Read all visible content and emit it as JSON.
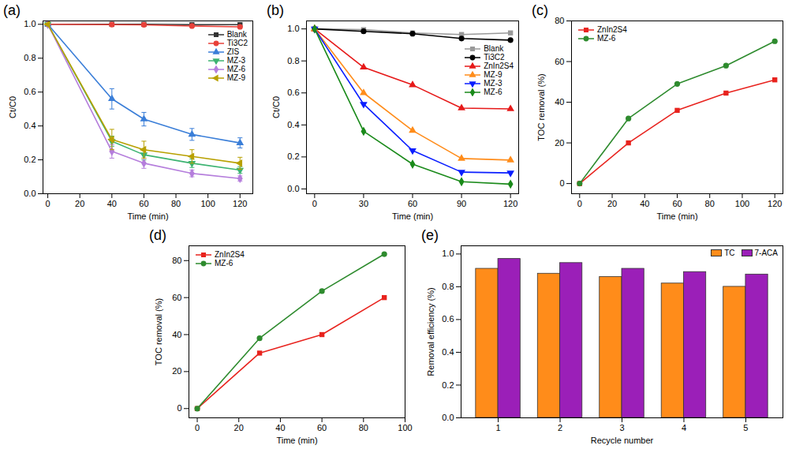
{
  "chart_data": [
    {
      "type": "line",
      "title": "(a)",
      "x_label": "Time (min)",
      "y_label": "Ct/C0",
      "x": [
        0,
        40,
        60,
        90,
        120
      ],
      "xlim": [
        -3,
        128
      ],
      "xticks": [
        0,
        20,
        40,
        60,
        80,
        100,
        120
      ],
      "ylim": [
        0,
        1.02
      ],
      "yticks": [
        {
          "value": 0,
          "label": "0.0"
        },
        0.2,
        0.4,
        0.6,
        0.8,
        {
          "value": 1,
          "label": "1.0"
        }
      ],
      "legend": "upper right",
      "series": [
        {
          "name": "Blank",
          "color": "#333333",
          "marker": "square",
          "values": [
            1,
            1,
            1,
            0.998,
            0.998
          ]
        },
        {
          "name": "Ti3C2",
          "color": "#e8413a",
          "marker": "circle",
          "values": [
            1,
            0.998,
            0.997,
            0.99,
            0.985
          ]
        },
        {
          "name": "ZIS",
          "color": "#3a7ed8",
          "marker": "triangle",
          "values": [
            1,
            0.56,
            0.44,
            0.35,
            0.3
          ],
          "errors": [
            0,
            0.06,
            0.04,
            0.035,
            0.03
          ]
        },
        {
          "name": "MZ-3",
          "color": "#3cb371",
          "marker": "triangle-down",
          "values": [
            1,
            0.31,
            0.23,
            0.18,
            0.14
          ],
          "errors": [
            0,
            0.03,
            0.03,
            0.025,
            0.02
          ]
        },
        {
          "name": "MZ-6",
          "color": "#b57edc",
          "marker": "diamond",
          "values": [
            1,
            0.25,
            0.18,
            0.12,
            0.09
          ],
          "errors": [
            0,
            0.04,
            0.03,
            0.02,
            0.015
          ]
        },
        {
          "name": "MZ-9",
          "color": "#b8a000",
          "marker": "triangle-left",
          "values": [
            1,
            0.32,
            0.26,
            0.22,
            0.18
          ],
          "errors": [
            0,
            0.06,
            0.05,
            0.04,
            0.035
          ]
        }
      ]
    },
    {
      "type": "line",
      "title": "(b)",
      "x_label": "Time (min)",
      "y_label": "Ct/C0",
      "x": [
        0,
        30,
        60,
        90,
        120
      ],
      "xlim": [
        -5,
        125
      ],
      "xticks": [
        0,
        30,
        60,
        90,
        120
      ],
      "ylim": [
        -0.03,
        1.05
      ],
      "yticks": [
        {
          "value": 0,
          "label": "0.0"
        },
        0.2,
        0.4,
        0.6,
        0.8,
        {
          "value": 1,
          "label": "1.0"
        }
      ],
      "legend": "upper right",
      "series": [
        {
          "name": "Blank",
          "color": "#999999",
          "marker": "square",
          "values": [
            1,
            0.995,
            0.975,
            0.965,
            0.975
          ]
        },
        {
          "name": "Ti3C2",
          "color": "#000000",
          "marker": "circle",
          "values": [
            1,
            0.985,
            0.97,
            0.94,
            0.93
          ]
        },
        {
          "name": "ZnIn2S4",
          "color": "#e61919",
          "marker": "triangle",
          "values": [
            1,
            0.76,
            0.65,
            0.505,
            0.5
          ]
        },
        {
          "name": "MZ-9",
          "color": "#ff8c1a",
          "marker": "triangle",
          "values": [
            1,
            0.6,
            0.365,
            0.19,
            0.18
          ]
        },
        {
          "name": "MZ-3",
          "color": "#0a1eff",
          "marker": "triangle-down",
          "values": [
            1,
            0.53,
            0.24,
            0.105,
            0.1
          ]
        },
        {
          "name": "MZ-6",
          "color": "#1a8a1a",
          "marker": "diamond",
          "values": [
            1,
            0.36,
            0.155,
            0.045,
            0.03
          ]
        }
      ]
    },
    {
      "type": "line",
      "title": "(c)",
      "x_label": "Time (min)",
      "y_label": "TOC removal (%)",
      "x": [
        0,
        30,
        60,
        90,
        120
      ],
      "xlim": [
        -5,
        125
      ],
      "xticks": [
        0,
        20,
        40,
        60,
        80,
        100,
        120
      ],
      "ylim": [
        -5,
        80
      ],
      "yticks": [
        0,
        20,
        40,
        60,
        80
      ],
      "legend": "upper left",
      "series": [
        {
          "name": "ZnIn2S4",
          "color": "#e8231e",
          "marker": "square",
          "values": [
            0,
            20,
            36,
            44.5,
            51
          ]
        },
        {
          "name": "MZ-6",
          "color": "#2e8b2e",
          "marker": "circle",
          "values": [
            0,
            32,
            49,
            58,
            70
          ]
        }
      ]
    },
    {
      "type": "line",
      "title": "(d)",
      "x_label": "Time (min)",
      "y_label": "TOC removal (%)",
      "x": [
        0,
        30,
        60,
        90
      ],
      "xlim": [
        -4,
        100
      ],
      "xticks": [
        0,
        20,
        40,
        60,
        80,
        100
      ],
      "ylim": [
        -5,
        88
      ],
      "yticks": [
        0,
        20,
        40,
        60,
        80
      ],
      "legend": "upper left",
      "series": [
        {
          "name": "ZnIn2S4",
          "color": "#e8231e",
          "marker": "square",
          "values": [
            0,
            30,
            40,
            60
          ]
        },
        {
          "name": "MZ-6",
          "color": "#2e8b2e",
          "marker": "circle",
          "values": [
            0,
            38,
            63.5,
            83.5
          ]
        }
      ]
    },
    {
      "type": "bar",
      "title": "(e)",
      "x_label": "Recycle number",
      "y_label": "Removal efficiency (%)",
      "categories": [
        "1",
        "2",
        "3",
        "4",
        "5"
      ],
      "ylim": [
        0,
        1.05
      ],
      "yticks": [
        {
          "value": 0,
          "label": "0.0"
        },
        0.2,
        0.4,
        0.6,
        0.8,
        {
          "value": 1,
          "label": "1.0"
        }
      ],
      "legend": "upper right",
      "series": [
        {
          "name": "TC",
          "color": "#ff8c1a",
          "values": [
            0.91,
            0.88,
            0.86,
            0.82,
            0.8
          ]
        },
        {
          "name": "7-ACA",
          "color": "#9b1fb8",
          "values": [
            0.97,
            0.945,
            0.91,
            0.89,
            0.875
          ]
        }
      ]
    }
  ]
}
